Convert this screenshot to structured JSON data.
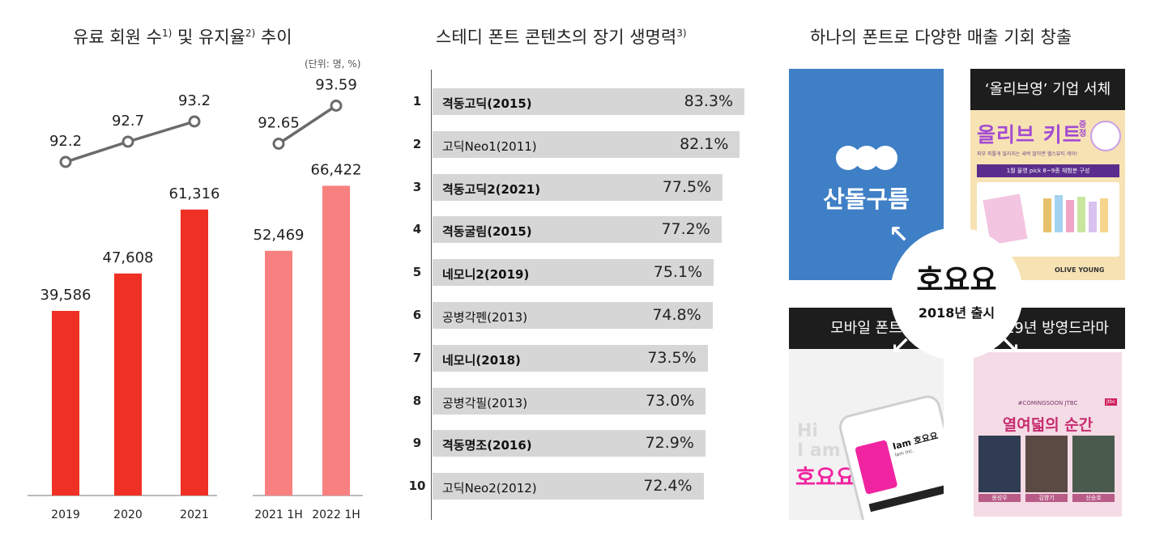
{
  "panel1": {
    "title": "유료 회원 수",
    "title_sup1": "1)",
    "title_mid": " 및 유지율",
    "title_sup2": "2)",
    "title_end": " 추이",
    "unit": "(단위: 명, %)"
  },
  "panel2": {
    "title": "스테디 폰트 콘텐츠의 장기 생명력",
    "title_sup": "3)"
  },
  "panel3": {
    "title": "하나의 폰트로 다양한 매출 기회 창출",
    "tile1_brand": "산돌구름",
    "tile2_head": "‘올리브영’ 기업 서체",
    "tile2_banner": "올리브 키트",
    "tile2_badge": "증정",
    "tile2_sub": "1월 올영 pick 8~9종 체험분 구성",
    "tile2_sub_small": "피부 피톨게 밀리지는 새싹 말하면 헬스뷰티 케어!",
    "tile2_footer": "OLIVE YOUNG",
    "tile3_head": "모바일 폰트",
    "tile3_hi": "Hi",
    "tile3_iam": "I am",
    "tile3_hoyoyo": "호요요",
    "tile3_phone": "Iam 호요요",
    "tile3_phone_small": "Iam Inc.",
    "tile4_head": "2019년 방영드라마",
    "tile4_small": "#COMINGSOON JTBC",
    "tile4_title": "열여덟의 순간",
    "tile4_badge": "jtbc",
    "tile4_cast": [
      "옹성우",
      "김향기",
      "신승호"
    ],
    "center_title": "호요요",
    "center_sub": "2018년 출시"
  },
  "chart_data": [
    {
      "type": "bar",
      "title": "유료 회원 수 및 유지율 추이",
      "unit": "(단위: 명, %)",
      "categories": [
        "2019",
        "2020",
        "2021",
        "2021 1H",
        "2022 1H"
      ],
      "series": [
        {
          "name": "유료 회원 수",
          "values": [
            39586,
            47608,
            61316,
            52469,
            66422
          ],
          "labels": [
            "39,586",
            "47,608",
            "61,316",
            "52,469",
            "66,422"
          ]
        },
        {
          "name": "유지율",
          "type": "line",
          "values": [
            92.2,
            92.7,
            93.2,
            92.65,
            93.59
          ],
          "labels": [
            "92.2",
            "92.7",
            "93.2",
            "92.65",
            "93.59"
          ]
        }
      ],
      "groups": [
        [
          "2019",
          "2020",
          "2021"
        ],
        [
          "2021 1H",
          "2022 1H"
        ]
      ],
      "colors": {
        "annual": "#ee3124",
        "half": "#f98080",
        "line": "#6b6b6b"
      },
      "ylim": [
        0,
        75000
      ]
    },
    {
      "type": "bar",
      "orientation": "horizontal",
      "title": "스테디 폰트 콘텐츠의 장기 생명력",
      "ranks": [
        "1",
        "2",
        "3",
        "4",
        "5",
        "6",
        "7",
        "8",
        "9",
        "10"
      ],
      "categories": [
        "격동고딕(2015)",
        "고딕Neo1(2011)",
        "격동고딕2(2021)",
        "격동굴림(2015)",
        "네모니2(2019)",
        "공병각펜(2013)",
        "네모니(2018)",
        "공병각필(2013)",
        "격동명조(2016)",
        "고딕Neo2(2012)"
      ],
      "values": [
        83.3,
        82.1,
        77.5,
        77.2,
        75.1,
        74.8,
        73.5,
        73.0,
        72.9,
        72.4
      ],
      "labels": [
        "83.3%",
        "82.1%",
        "77.5%",
        "77.2%",
        "75.1%",
        "74.8%",
        "73.5%",
        "73.0%",
        "72.9%",
        "72.4%"
      ],
      "bold": [
        true,
        false,
        true,
        true,
        true,
        false,
        true,
        false,
        true,
        false
      ],
      "colors": {
        "bar": "#d6d6d6"
      }
    }
  ]
}
